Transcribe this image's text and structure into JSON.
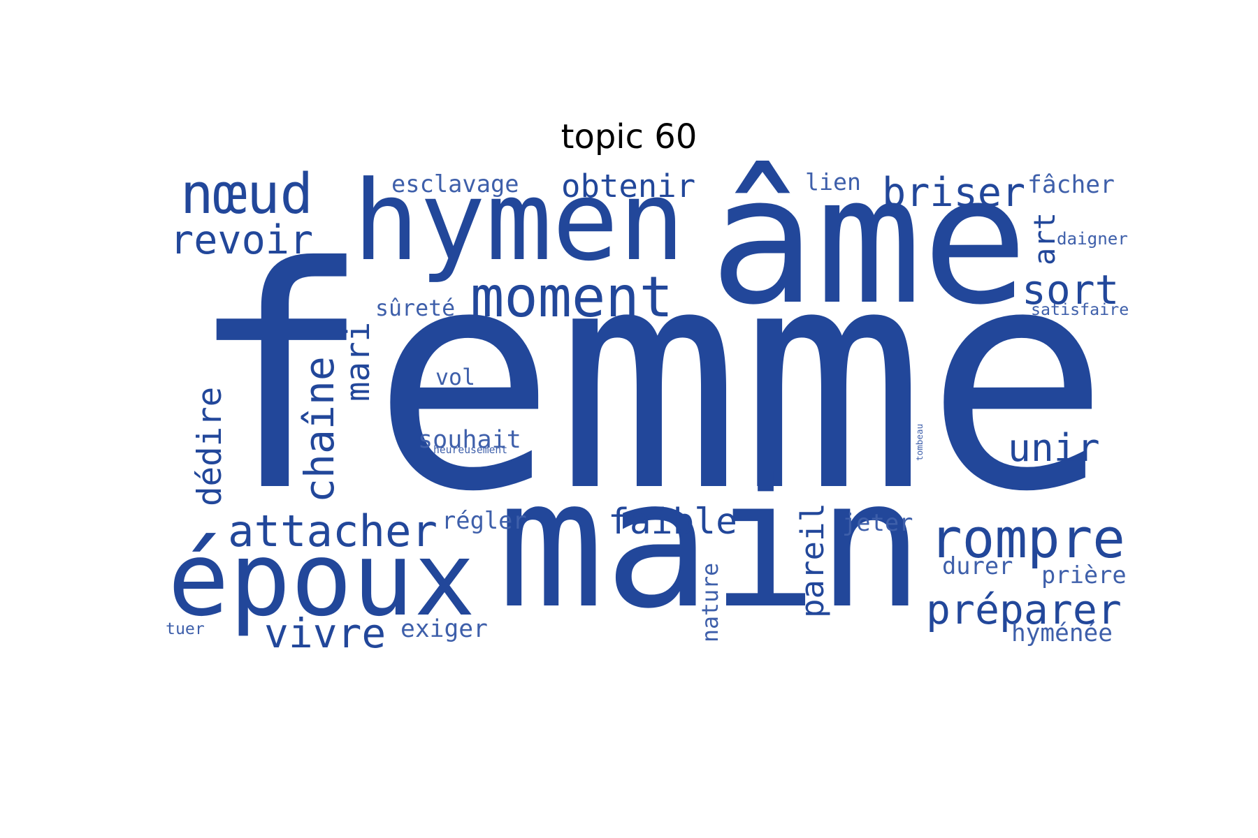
{
  "title": "topic 60",
  "colors": {
    "primary": "#22479a",
    "light": "#3e5faa"
  },
  "words": [
    {
      "text": "femme"
    },
    {
      "text": "main"
    },
    {
      "text": "âme"
    },
    {
      "text": "hymen"
    },
    {
      "text": "époux"
    },
    {
      "text": "nœud"
    },
    {
      "text": "moment"
    },
    {
      "text": "rompre"
    },
    {
      "text": "préparer"
    },
    {
      "text": "attacher"
    },
    {
      "text": "briser"
    },
    {
      "text": "revoir"
    },
    {
      "text": "obtenir"
    },
    {
      "text": "faible"
    },
    {
      "text": "sort"
    },
    {
      "text": "unir"
    },
    {
      "text": "vivre"
    },
    {
      "text": "chaîne"
    },
    {
      "text": "dédire"
    },
    {
      "text": "mari"
    },
    {
      "text": "pareil"
    },
    {
      "text": "art"
    },
    {
      "text": "esclavage"
    },
    {
      "text": "lien"
    },
    {
      "text": "fâcher"
    },
    {
      "text": "sûreté"
    },
    {
      "text": "vol"
    },
    {
      "text": "souhait"
    },
    {
      "text": "heureusement"
    },
    {
      "text": "régler"
    },
    {
      "text": "jeter"
    },
    {
      "text": "durer"
    },
    {
      "text": "prière"
    },
    {
      "text": "exiger"
    },
    {
      "text": "hyménée"
    },
    {
      "text": "tuer"
    },
    {
      "text": "nature"
    },
    {
      "text": "daigner"
    },
    {
      "text": "satisfaire"
    },
    {
      "text": "tombeau"
    }
  ]
}
